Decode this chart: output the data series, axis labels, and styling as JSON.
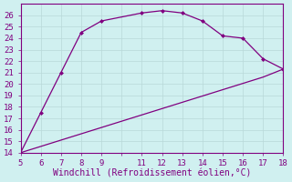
{
  "xlabel": "Windchill (Refroidissement éolien,°C)",
  "upper_x": [
    5,
    6,
    7,
    8,
    9,
    11,
    12,
    13,
    14,
    15,
    16,
    17,
    18
  ],
  "upper_y": [
    14,
    17.5,
    21,
    24.5,
    25.5,
    26.2,
    26.4,
    26.2,
    25.5,
    24.2,
    24.0,
    22.2,
    21.3
  ],
  "lower_x": [
    5,
    6,
    7,
    8,
    9,
    10,
    11,
    12,
    13,
    14,
    15,
    16,
    17,
    18
  ],
  "lower_y": [
    14,
    14.55,
    15.1,
    15.65,
    16.2,
    16.75,
    17.3,
    17.85,
    18.4,
    18.95,
    19.5,
    20.05,
    20.6,
    21.3
  ],
  "line_color": "#800080",
  "bg_color": "#d0f0f0",
  "grid_color": "#b8d8d8",
  "xlim": [
    5,
    18
  ],
  "ylim": [
    14,
    27
  ],
  "yticks": [
    14,
    15,
    16,
    17,
    18,
    19,
    20,
    21,
    22,
    23,
    24,
    25,
    26
  ],
  "xticks": [
    5,
    6,
    7,
    8,
    9,
    11,
    12,
    13,
    14,
    15,
    16,
    17,
    18
  ],
  "label_fontsize": 7,
  "tick_fontsize": 6.5,
  "marker_size": 2.5,
  "line_width": 0.9
}
